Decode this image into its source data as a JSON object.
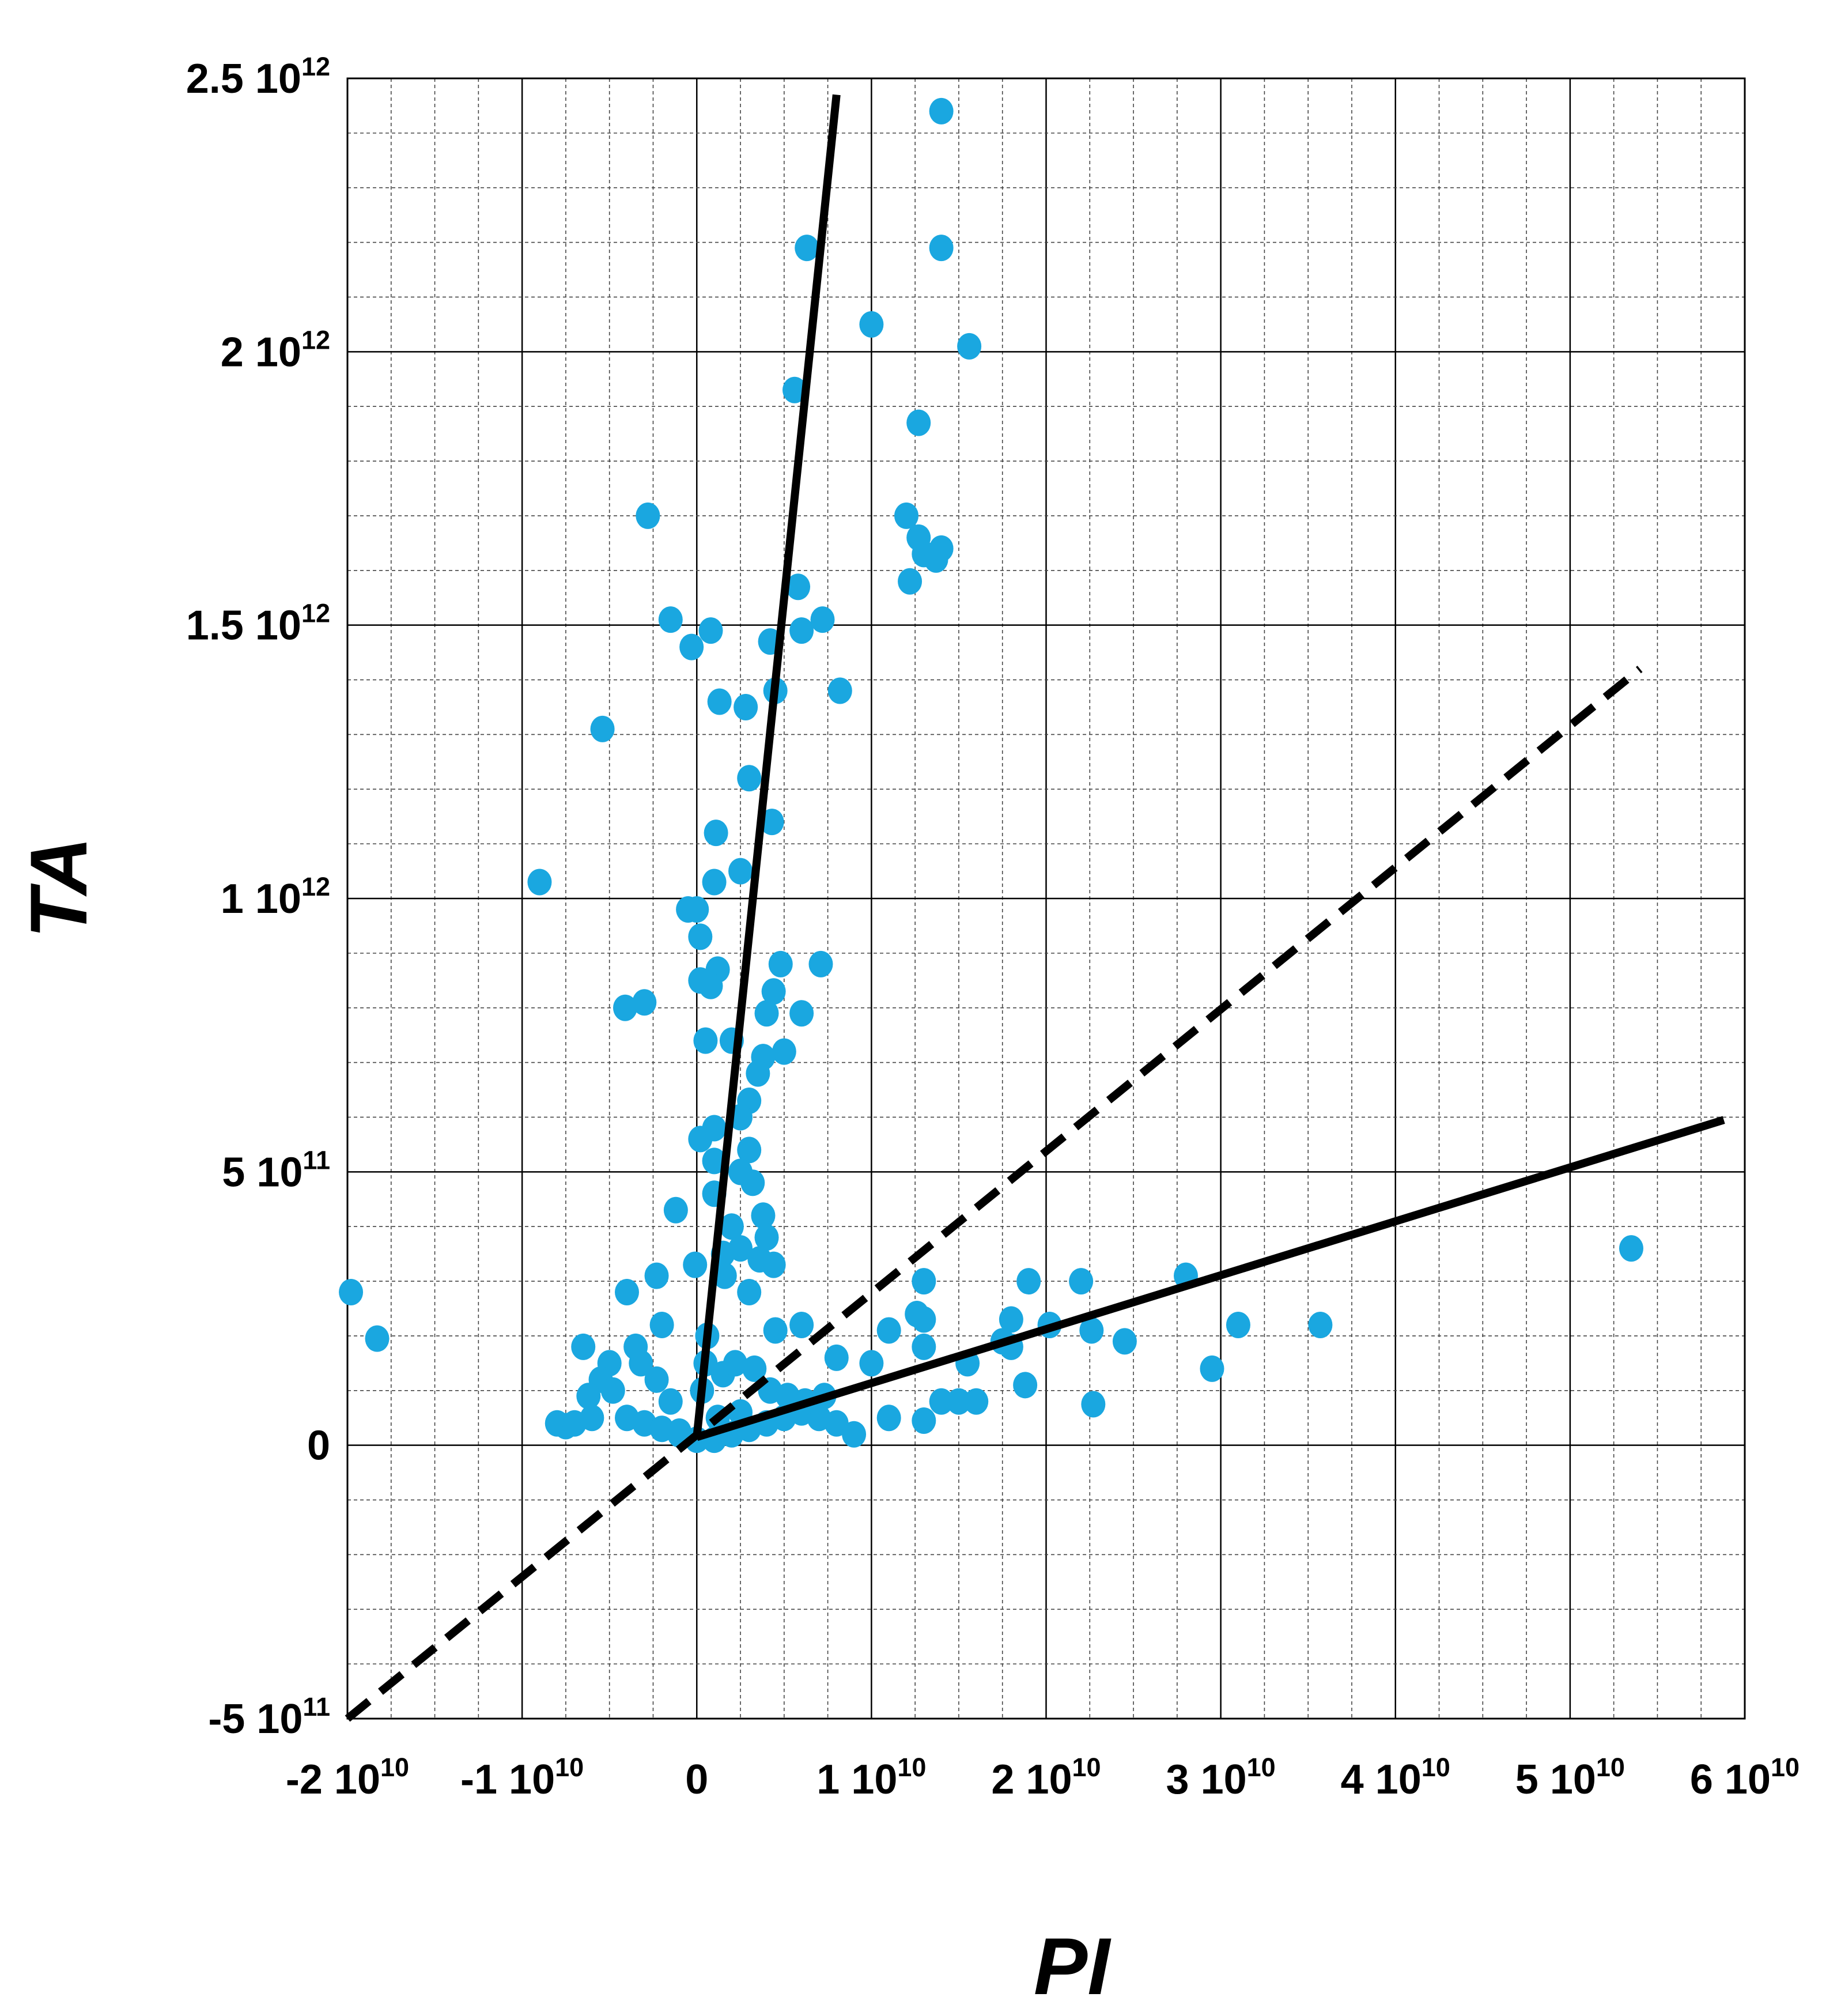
{
  "chart_data": {
    "type": "scatter",
    "title": "",
    "xlabel": "PI",
    "ylabel": "TA",
    "xlim": [
      -20000000000.0,
      60000000000.0
    ],
    "ylim": [
      -500000000000.0,
      2500000000000.0
    ],
    "grid": true,
    "minor_grid": true,
    "x_ticks": [
      {
        "v": -20000000000.0,
        "base": "-2 10",
        "exp": "10"
      },
      {
        "v": -10000000000.0,
        "base": "-1 10",
        "exp": "10"
      },
      {
        "v": 0,
        "base": "0",
        "exp": ""
      },
      {
        "v": 10000000000.0,
        "base": "1 10",
        "exp": "10"
      },
      {
        "v": 20000000000.0,
        "base": "2 10",
        "exp": "10"
      },
      {
        "v": 30000000000.0,
        "base": "3 10",
        "exp": "10"
      },
      {
        "v": 40000000000.0,
        "base": "4 10",
        "exp": "10"
      },
      {
        "v": 50000000000.0,
        "base": "5 10",
        "exp": "10"
      },
      {
        "v": 60000000000.0,
        "base": "6 10",
        "exp": "10"
      }
    ],
    "y_ticks": [
      {
        "v": 2500000000000.0,
        "base": "2.5 10",
        "exp": "12"
      },
      {
        "v": 2000000000000.0,
        "base": "2 10",
        "exp": "12"
      },
      {
        "v": 1500000000000.0,
        "base": "1.5 10",
        "exp": "12"
      },
      {
        "v": 1000000000000.0,
        "base": "1 10",
        "exp": "12"
      },
      {
        "v": 500000000000.0,
        "base": "5 10",
        "exp": "11"
      },
      {
        "v": 0,
        "base": "0",
        "exp": ""
      },
      {
        "v": -500000000000.0,
        "base": "-5 10",
        "exp": "11"
      }
    ],
    "point_color": "#1aa7e0",
    "lines": [
      {
        "style": "solid",
        "color": "#000000",
        "points": [
          [
            0,
            15000000000.0
          ],
          [
            8000000000.0,
            2470000000000.0
          ]
        ]
      },
      {
        "style": "solid",
        "color": "#000000",
        "points": [
          [
            0,
            15000000000.0
          ],
          [
            58800000000.0,
            595000000000.0
          ]
        ]
      },
      {
        "style": "dashed",
        "color": "#000000",
        "points": [
          [
            -20000000000.0,
            -500000000000.0
          ],
          [
            54000000000.0,
            1420000000000.0
          ]
        ]
      }
    ],
    "points": [
      [
        14000000000.0,
        2440000000000.0
      ],
      [
        6300000000.0,
        2190000000000.0
      ],
      [
        14000000000.0,
        2190000000000.0
      ],
      [
        10000000000.0,
        2050000000000.0
      ],
      [
        15600000000.0,
        2010000000000.0
      ],
      [
        5600000000.0,
        1930000000000.0
      ],
      [
        12700000000.0,
        1870000000000.0
      ],
      [
        -2800000000.0,
        1700000000000.0
      ],
      [
        12000000000.0,
        1700000000000.0
      ],
      [
        12700000000.0,
        1660000000000.0
      ],
      [
        13000000000.0,
        1630000000000.0
      ],
      [
        14000000000.0,
        1640000000000.0
      ],
      [
        13700000000.0,
        1620000000000.0
      ],
      [
        12200000000.0,
        1580000000000.0
      ],
      [
        5800000000.0,
        1570000000000.0
      ],
      [
        -1500000000.0,
        1510000000000.0
      ],
      [
        7200000000.0,
        1510000000000.0
      ],
      [
        800000000.0,
        1490000000000.0
      ],
      [
        6000000000.0,
        1490000000000.0
      ],
      [
        4200000000.0,
        1470000000000.0
      ],
      [
        -300000000.0,
        1460000000000.0
      ],
      [
        8200000000.0,
        1380000000000.0
      ],
      [
        4500000000.0,
        1380000000000.0
      ],
      [
        1300000000.0,
        1360000000000.0
      ],
      [
        2800000000.0,
        1350000000000.0
      ],
      [
        -5400000000.0,
        1310000000000.0
      ],
      [
        3000000000.0,
        1220000000000.0
      ],
      [
        4300000000.0,
        1140000000000.0
      ],
      [
        1100000000.0,
        1120000000000.0
      ],
      [
        2500000000.0,
        1050000000000.0
      ],
      [
        1000000000.0,
        1030000000000.0
      ],
      [
        -9000000000.0,
        1030000000000.0
      ],
      [
        0,
        980000000000.0
      ],
      [
        200000000.0,
        930000000000.0
      ],
      [
        -500000000.0,
        980000000000.0
      ],
      [
        4800000000.0,
        880000000000.0
      ],
      [
        7100000000.0,
        880000000000.0
      ],
      [
        1200000000.0,
        870000000000.0
      ],
      [
        200000000.0,
        850000000000.0
      ],
      [
        800000000.0,
        840000000000.0
      ],
      [
        4400000000.0,
        830000000000.0
      ],
      [
        -3000000000.0,
        810000000000.0
      ],
      [
        -4100000000.0,
        800000000000.0
      ],
      [
        6000000000.0,
        790000000000.0
      ],
      [
        4000000000.0,
        790000000000.0
      ],
      [
        500000000.0,
        740000000000.0
      ],
      [
        2000000000.0,
        740000000000.0
      ],
      [
        5000000000.0,
        720000000000.0
      ],
      [
        3800000000.0,
        710000000000.0
      ],
      [
        3500000000.0,
        680000000000.0
      ],
      [
        3000000000.0,
        630000000000.0
      ],
      [
        2500000000.0,
        600000000000.0
      ],
      [
        1000000000.0,
        580000000000.0
      ],
      [
        200000000.0,
        560000000000.0
      ],
      [
        3000000000.0,
        540000000000.0
      ],
      [
        1000000000.0,
        520000000000.0
      ],
      [
        2500000000.0,
        500000000000.0
      ],
      [
        3200000000.0,
        480000000000.0
      ],
      [
        1000000000.0,
        460000000000.0
      ],
      [
        -1200000000.0,
        430000000000.0
      ],
      [
        3800000000.0,
        420000000000.0
      ],
      [
        2000000000.0,
        400000000000.0
      ],
      [
        4000000000.0,
        380000000000.0
      ],
      [
        2500000000.0,
        360000000000.0
      ],
      [
        1500000000.0,
        350000000000.0
      ],
      [
        3600000000.0,
        340000000000.0
      ],
      [
        4400000000.0,
        330000000000.0
      ],
      [
        -100000000.0,
        330000000000.0
      ],
      [
        1600000000.0,
        310000000000.0
      ],
      [
        -2300000000.0,
        310000000000.0
      ],
      [
        -4000000000.0,
        280000000000.0
      ],
      [
        3000000000.0,
        280000000000.0
      ],
      [
        13000000000.0,
        300000000000.0
      ],
      [
        19000000000.0,
        300000000000.0
      ],
      [
        22000000000.0,
        300000000000.0
      ],
      [
        28000000000.0,
        310000000000.0
      ],
      [
        53500000000.0,
        360000000000.0
      ],
      [
        -19800000000.0,
        280000000000.0
      ],
      [
        -18300000000.0,
        195000000000.0
      ],
      [
        31000000000.0,
        220000000000.0
      ],
      [
        35700000000.0,
        220000000000.0
      ],
      [
        18000000000.0,
        230000000000.0
      ],
      [
        20200000000.0,
        220000000000.0
      ],
      [
        22600000000.0,
        210000000000.0
      ],
      [
        24500000000.0,
        190000000000.0
      ],
      [
        12600000000.0,
        240000000000.0
      ],
      [
        13000000000.0,
        230000000000.0
      ],
      [
        11000000000.0,
        210000000000.0
      ],
      [
        17500000000.0,
        190000000000.0
      ],
      [
        18000000000.0,
        180000000000.0
      ],
      [
        6000000000.0,
        220000000000.0
      ],
      [
        4500000000.0,
        210000000000.0
      ],
      [
        -2000000000.0,
        220000000000.0
      ],
      [
        13000000000.0,
        180000000000.0
      ],
      [
        10000000000.0,
        150000000000.0
      ],
      [
        8000000000.0,
        160000000000.0
      ],
      [
        15500000000.0,
        150000000000.0
      ],
      [
        -6500000000.0,
        180000000000.0
      ],
      [
        -3500000000.0,
        180000000000.0
      ],
      [
        -5000000000.0,
        150000000000.0
      ],
      [
        -2300000000.0,
        120000000000.0
      ],
      [
        -5500000000.0,
        120000000000.0
      ],
      [
        29500000000.0,
        140000000000.0
      ],
      [
        18800000000.0,
        110000000000.0
      ],
      [
        22700000000.0,
        75000000000.0
      ],
      [
        -8000000000.0,
        40000000000.0
      ],
      [
        -7500000000.0,
        35000000000.0
      ],
      [
        -7000000000.0,
        40000000000.0
      ],
      [
        -6000000000.0,
        50000000000.0
      ],
      [
        -4000000000.0,
        50000000000.0
      ],
      [
        -3000000000.0,
        40000000000.0
      ],
      [
        -2000000000.0,
        30000000000.0
      ],
      [
        -1000000000.0,
        20000000000.0
      ],
      [
        0,
        10000000000.0
      ],
      [
        1000000000.0,
        10000000000.0
      ],
      [
        2000000000.0,
        20000000000.0
      ],
      [
        3000000000.0,
        30000000000.0
      ],
      [
        4000000000.0,
        40000000000.0
      ],
      [
        5000000000.0,
        50000000000.0
      ],
      [
        6000000000.0,
        60000000000.0
      ],
      [
        7000000000.0,
        50000000000.0
      ],
      [
        8000000000.0,
        40000000000.0
      ],
      [
        9000000000.0,
        20000000000.0
      ],
      [
        11000000000.0,
        50000000000.0
      ],
      [
        14000000000.0,
        80000000000.0
      ],
      [
        15000000000.0,
        80000000000.0
      ],
      [
        16000000000.0,
        80000000000.0
      ],
      [
        13000000000.0,
        45000000000.0
      ],
      [
        300000000.0,
        100000000000.0
      ],
      [
        500000000.0,
        150000000000.0
      ],
      [
        600000000.0,
        200000000000.0
      ],
      [
        1500000000.0,
        130000000000.0
      ],
      [
        2200000000.0,
        150000000000.0
      ],
      [
        3300000000.0,
        140000000000.0
      ],
      [
        4200000000.0,
        100000000000.0
      ],
      [
        5200000000.0,
        90000000000.0
      ],
      [
        6200000000.0,
        80000000000.0
      ],
      [
        7300000000.0,
        90000000000.0
      ],
      [
        2500000000.0,
        60000000000.0
      ],
      [
        1200000000.0,
        50000000000.0
      ],
      [
        -1500000000.0,
        80000000000.0
      ],
      [
        -4800000000.0,
        100000000000.0
      ],
      [
        -6200000000.0,
        90000000000.0
      ],
      [
        -3200000000.0,
        150000000000.0
      ],
      [
        -1000000000.0,
        25000000000.0
      ]
    ]
  }
}
